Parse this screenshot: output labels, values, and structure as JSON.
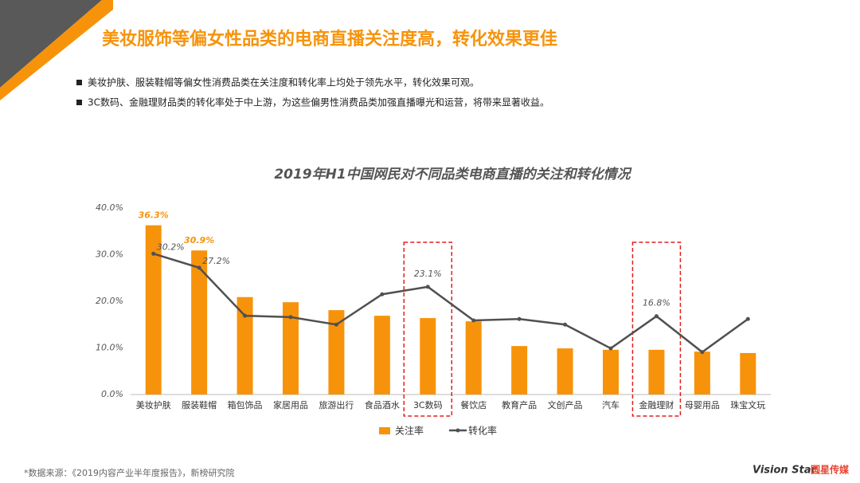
{
  "header": {
    "title": "美妆服饰等偏女性品类的电商直播关注度高，转化效果更佳",
    "bullets": [
      "美妆护肤、服装鞋帽等偏女性消费品类在关注度和转化率上均处于领先水平，转化效果可观。",
      "3C数码、金融理财品类的转化率处于中上游，为这些偏男性消费品类加强直播曝光和运营，将带来显著收益。"
    ]
  },
  "chart_data": {
    "type": "bar_line",
    "title": "2019年H1中国网民对不同品类电商直播的关注和转化情况",
    "categories": [
      "美妆护肤",
      "服装鞋帽",
      "箱包饰品",
      "家居用品",
      "旅游出行",
      "食品酒水",
      "3C数码",
      "餐饮店",
      "教育产品",
      "文创产品",
      "汽车",
      "金融理财",
      "母婴用品",
      "珠宝文玩"
    ],
    "series": [
      {
        "name": "关注率",
        "kind": "bar",
        "color": "#f7930a",
        "values": [
          36.3,
          30.9,
          20.9,
          19.8,
          18.1,
          16.9,
          16.4,
          15.7,
          10.4,
          9.9,
          9.6,
          9.6,
          9.2,
          8.9
        ],
        "value_labels": [
          "36.3%",
          "30.9%",
          null,
          null,
          null,
          null,
          null,
          null,
          null,
          null,
          null,
          null,
          null,
          null
        ]
      },
      {
        "name": "转化率",
        "kind": "line",
        "color": "#505050",
        "values": [
          30.2,
          27.2,
          16.9,
          16.6,
          15.0,
          21.5,
          23.1,
          15.9,
          16.2,
          15.0,
          9.9,
          16.8,
          9.1,
          16.2
        ],
        "value_labels": [
          "30.2%",
          "27.2%",
          null,
          null,
          null,
          null,
          "23.1%",
          null,
          null,
          null,
          null,
          "16.8%",
          null,
          null
        ]
      }
    ],
    "ylim": [
      0,
      40
    ],
    "yticks": [
      {
        "value": 0,
        "label": "0.0%"
      },
      {
        "value": 10,
        "label": "10.0%"
      },
      {
        "value": 20,
        "label": "20.0%"
      },
      {
        "value": 30,
        "label": "30.0%"
      },
      {
        "value": 40,
        "label": "40.0%"
      }
    ],
    "grid": false,
    "legend": "bottom",
    "highlight": [
      6,
      11
    ]
  },
  "footer": {
    "source": "*数据来源：《2019内容产业半年度报告》，新榜研究院",
    "logo": "Vision Star",
    "logo_cn": "圆星传媒"
  }
}
